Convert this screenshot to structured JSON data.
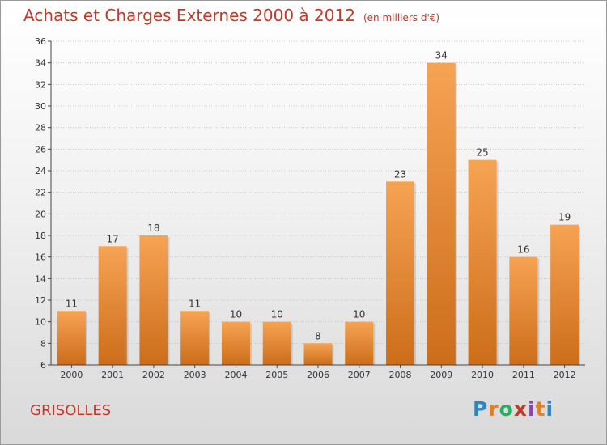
{
  "header": {
    "title": "Achats et Charges Externes 2000 à 2012",
    "unit": "(en milliers d'€)"
  },
  "footer": {
    "commune": "GRISOLLES",
    "logo": {
      "letters": [
        "P",
        "r",
        "o",
        "x",
        "i",
        "t",
        "i"
      ],
      "colors": [
        "#2e86c1",
        "#e67e22",
        "#27ae60",
        "#c0392b",
        "#8e44ad",
        "#e67e22",
        "#2e86c1"
      ]
    }
  },
  "colors": {
    "bar_top": "#f6a354",
    "bar_bottom": "#cc6d1a",
    "axis": "#444444",
    "grid": "#bdbdbd"
  },
  "chart_data": {
    "type": "bar",
    "title": "Achats et Charges Externes 2000 à 2012",
    "categories": [
      "2000",
      "2001",
      "2002",
      "2003",
      "2004",
      "2005",
      "2006",
      "2007",
      "2008",
      "2009",
      "2010",
      "2011",
      "2012"
    ],
    "values": [
      11,
      17,
      18,
      11,
      10,
      10,
      8,
      10,
      23,
      34,
      25,
      16,
      19
    ],
    "ylim": [
      6,
      36
    ],
    "yticks": [
      6,
      8,
      10,
      12,
      14,
      16,
      18,
      20,
      22,
      24,
      26,
      28,
      30,
      32,
      34,
      36
    ],
    "xlabel": "",
    "ylabel": "",
    "grid": true,
    "legend": "none"
  }
}
